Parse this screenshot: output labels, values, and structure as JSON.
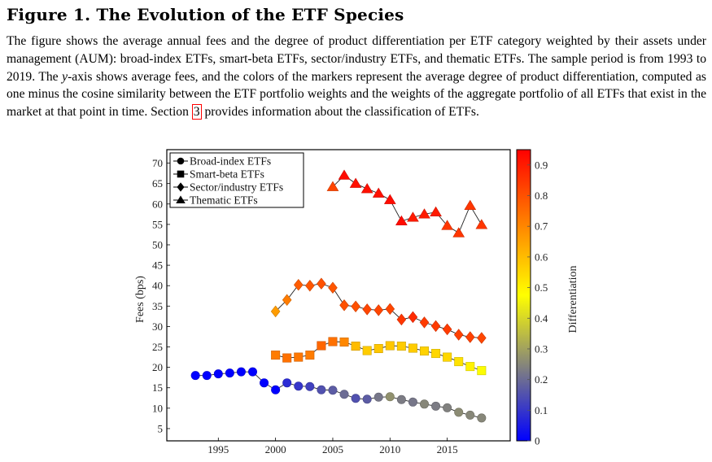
{
  "figure": {
    "title": "Figure 1. The Evolution of the ETF Species",
    "caption_parts": {
      "p1": "The figure shows the average annual fees and the degree of product differentiation per ETF category weighted by their assets under management (AUM): broad-index ETFs, smart-beta ETFs, sector/industry ETFs, and thematic ETFs. The sample period is from 1993 to 2019. The ",
      "y_italic": "y",
      "p2": "-axis shows average fees, and the colors of the markers represent the average degree of product differentiation, computed as one minus the cosine similarity between the ETF portfolio weights and the weights of the aggregate portfolio of all ETFs that exist in the market at that point in time. Section ",
      "section_ref": "3",
      "p3": " provides information about the classification of ETFs."
    }
  },
  "chart_data": {
    "type": "scatter",
    "title": "",
    "xlabel": "",
    "ylabel": "Fees (bps)",
    "xlim": [
      1990.5,
      2020.5
    ],
    "ylim": [
      2,
      73.3
    ],
    "xticks": [
      1995,
      2000,
      2005,
      2010,
      2015
    ],
    "yticks": [
      5,
      10,
      15,
      20,
      25,
      30,
      35,
      40,
      45,
      50,
      55,
      60,
      65,
      70
    ],
    "grid": false,
    "legend_position": "top-left",
    "colorbar": {
      "label": "Differentiation",
      "range": [
        0,
        0.95
      ],
      "ticks": [
        0,
        0.1,
        0.2,
        0.3,
        0.4,
        0.5,
        0.6,
        0.7,
        0.8,
        0.9
      ],
      "colormap": [
        "#0000ff",
        "#808080",
        "#ffff00",
        "#ff8000",
        "#ff0000"
      ]
    },
    "series": [
      {
        "name": "Broad-index ETFs",
        "marker": "circle",
        "x": [
          1993,
          1994,
          1995,
          1996,
          1997,
          1998,
          1999,
          2000,
          2001,
          2002,
          2003,
          2004,
          2005,
          2006,
          2007,
          2008,
          2009,
          2010,
          2011,
          2012,
          2013,
          2014,
          2015,
          2016,
          2017,
          2018
        ],
        "y": [
          18.0,
          18.0,
          18.4,
          18.6,
          18.9,
          18.9,
          16.2,
          14.5,
          16.2,
          15.4,
          15.3,
          14.5,
          14.4,
          13.4,
          12.4,
          12.2,
          12.7,
          12.8,
          12.1,
          11.5,
          11.0,
          10.5,
          10.1,
          9.0,
          8.3,
          7.6
        ],
        "differentiation": [
          0.0,
          0.0,
          0.0,
          0.0,
          0.0,
          0.0,
          0.0,
          0.0,
          0.08,
          0.1,
          0.12,
          0.15,
          0.17,
          0.2,
          0.15,
          0.17,
          0.22,
          0.27,
          0.23,
          0.22,
          0.25,
          0.23,
          0.24,
          0.26,
          0.25,
          0.25
        ]
      },
      {
        "name": "Smart-beta ETFs",
        "marker": "square",
        "x": [
          2000,
          2001,
          2002,
          2003,
          2004,
          2005,
          2006,
          2007,
          2008,
          2009,
          2010,
          2011,
          2012,
          2013,
          2014,
          2015,
          2016,
          2017,
          2018
        ],
        "y": [
          23.0,
          22.3,
          22.5,
          23.0,
          25.3,
          26.3,
          26.2,
          25.2,
          24.1,
          24.6,
          25.3,
          25.2,
          24.7,
          24.0,
          23.4,
          22.5,
          21.4,
          20.2,
          19.2
        ],
        "differentiation": [
          0.72,
          0.74,
          0.73,
          0.72,
          0.76,
          0.74,
          0.7,
          0.6,
          0.57,
          0.58,
          0.58,
          0.57,
          0.57,
          0.56,
          0.55,
          0.55,
          0.53,
          0.5,
          0.47
        ]
      },
      {
        "name": "Sector/industry ETFs",
        "marker": "diamond",
        "x": [
          2000,
          2001,
          2002,
          2003,
          2004,
          2005,
          2006,
          2007,
          2008,
          2009,
          2010,
          2011,
          2012,
          2013,
          2014,
          2015,
          2016,
          2017,
          2018
        ],
        "y": [
          33.7,
          36.5,
          40.2,
          40.0,
          40.5,
          39.5,
          35.2,
          34.9,
          34.2,
          34.0,
          34.3,
          31.7,
          32.3,
          31.0,
          30.1,
          29.3,
          28.0,
          27.4,
          27.2
        ],
        "differentiation": [
          0.66,
          0.72,
          0.78,
          0.79,
          0.8,
          0.79,
          0.8,
          0.8,
          0.82,
          0.82,
          0.82,
          0.85,
          0.87,
          0.84,
          0.84,
          0.84,
          0.83,
          0.83,
          0.82
        ]
      },
      {
        "name": "Thematic ETFs",
        "marker": "triangle",
        "x": [
          2005,
          2006,
          2007,
          2008,
          2009,
          2010,
          2011,
          2012,
          2013,
          2014,
          2015,
          2016,
          2017,
          2018
        ],
        "y": [
          64.2,
          67.0,
          65.0,
          63.7,
          62.6,
          61.0,
          55.8,
          56.7,
          57.5,
          58.0,
          54.7,
          52.9,
          59.6,
          54.9
        ],
        "differentiation": [
          0.82,
          0.93,
          0.92,
          0.92,
          0.92,
          0.93,
          0.93,
          0.9,
          0.9,
          0.9,
          0.85,
          0.85,
          0.85,
          0.85
        ]
      }
    ]
  }
}
